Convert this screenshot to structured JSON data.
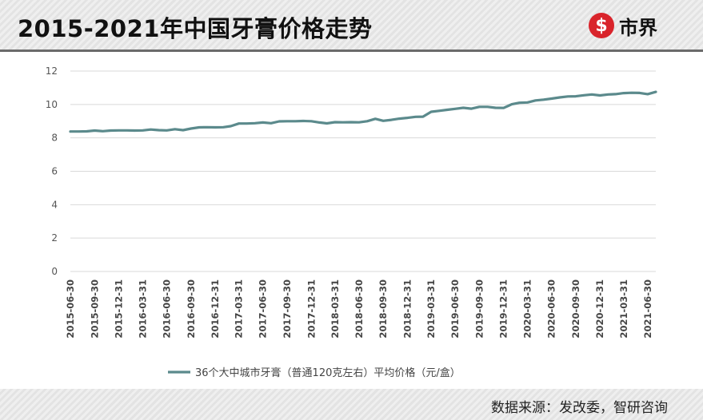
{
  "header": {
    "title": "2015-2021年中国牙膏价格走势",
    "logo_mark": "$",
    "logo_text": "市界"
  },
  "footer": {
    "source": "数据来源：发改委，智研咨询"
  },
  "colors": {
    "line": "#5b8a8c",
    "grid": "#d9d9d9",
    "logo_red": "#d9242b"
  },
  "chart_data": {
    "type": "line",
    "title": "",
    "xlabel": "",
    "ylabel": "",
    "ylim": [
      0,
      12
    ],
    "yticks": [
      0,
      2,
      4,
      6,
      8,
      10,
      12
    ],
    "grid": true,
    "legend_position": "bottom",
    "xtick_labels": [
      "2015-06-30",
      "2015-09-30",
      "2015-12-31",
      "2016-03-31",
      "2016-06-30",
      "2016-09-30",
      "2016-12-31",
      "2017-03-31",
      "2017-06-30",
      "2017-09-30",
      "2017-12-31",
      "2018-03-31",
      "2018-06-30",
      "2018-09-30",
      "2018-12-31",
      "2019-03-31",
      "2019-06-30",
      "2019-09-30",
      "2019-12-31",
      "2020-03-31",
      "2020-06-30",
      "2020-09-30",
      "2020-12-31",
      "2021-03-31",
      "2021-06-30"
    ],
    "series": [
      {
        "name": "36个大中城市牙膏（普通120克左右）平均价格（元/盒）",
        "x": [
          "2015-06-30",
          "2015-07-31",
          "2015-08-31",
          "2015-09-30",
          "2015-10-31",
          "2015-11-30",
          "2015-12-31",
          "2016-01-31",
          "2016-02-29",
          "2016-03-31",
          "2016-04-30",
          "2016-05-31",
          "2016-06-30",
          "2016-07-31",
          "2016-08-31",
          "2016-09-30",
          "2016-10-31",
          "2016-11-30",
          "2016-12-31",
          "2017-01-31",
          "2017-02-28",
          "2017-03-31",
          "2017-04-30",
          "2017-05-31",
          "2017-06-30",
          "2017-07-31",
          "2017-08-31",
          "2017-09-30",
          "2017-10-31",
          "2017-11-30",
          "2017-12-31",
          "2018-01-31",
          "2018-02-28",
          "2018-03-31",
          "2018-04-30",
          "2018-05-31",
          "2018-06-30",
          "2018-07-31",
          "2018-08-31",
          "2018-09-30",
          "2018-10-31",
          "2018-11-30",
          "2018-12-31",
          "2019-01-31",
          "2019-02-28",
          "2019-03-31",
          "2019-04-30",
          "2019-05-31",
          "2019-06-30",
          "2019-07-31",
          "2019-08-31",
          "2019-09-30",
          "2019-10-31",
          "2019-11-30",
          "2019-12-31",
          "2020-01-31",
          "2020-02-29",
          "2020-03-31",
          "2020-04-30",
          "2020-05-31",
          "2020-06-30",
          "2020-07-31",
          "2020-08-31",
          "2020-09-30",
          "2020-10-31",
          "2020-11-30",
          "2020-12-31",
          "2021-01-31",
          "2021-02-28",
          "2021-03-31",
          "2021-04-30",
          "2021-05-31",
          "2021-06-30",
          "2021-07-31"
        ],
        "values": [
          8.38,
          8.38,
          8.39,
          8.44,
          8.4,
          8.44,
          8.45,
          8.45,
          8.44,
          8.45,
          8.5,
          8.46,
          8.45,
          8.52,
          8.46,
          8.56,
          8.63,
          8.64,
          8.63,
          8.64,
          8.7,
          8.86,
          8.86,
          8.88,
          8.92,
          8.88,
          8.99,
          9.0,
          9.0,
          9.01,
          9.0,
          8.92,
          8.87,
          8.94,
          8.93,
          8.94,
          8.93,
          9.0,
          9.14,
          9.02,
          9.08,
          9.15,
          9.2,
          9.26,
          9.27,
          9.56,
          9.62,
          9.68,
          9.74,
          9.8,
          9.75,
          9.86,
          9.86,
          9.8,
          9.79,
          10.01,
          10.1,
          10.12,
          10.24,
          10.29,
          10.35,
          10.42,
          10.48,
          10.49,
          10.55,
          10.6,
          10.54,
          10.6,
          10.62,
          10.68,
          10.7,
          10.69,
          10.62,
          10.75
        ]
      }
    ]
  }
}
